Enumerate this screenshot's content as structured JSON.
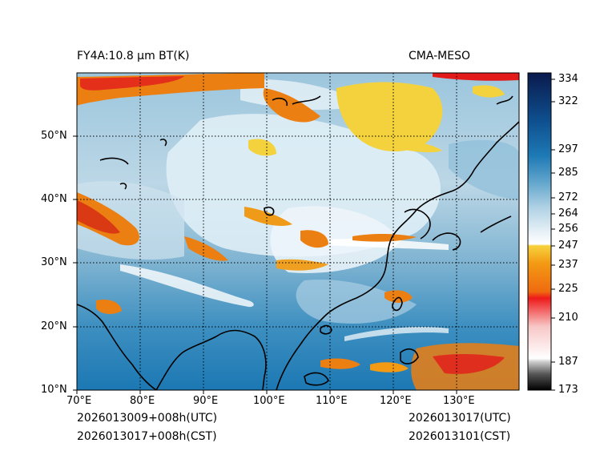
{
  "titles": {
    "left": "FY4A:10.8 µm BT(K)",
    "right": "CMA-MESO"
  },
  "footer": {
    "init_utc": "2026013009+008h(UTC)",
    "init_cst": "2026013017+008h(CST)",
    "valid_utc": "2026013017(UTC)",
    "valid_cst": "2026013101(CST)"
  },
  "map": {
    "lon_ticks": [
      "70°E",
      "80°E",
      "90°E",
      "100°E",
      "110°E",
      "120°E",
      "130°E"
    ],
    "lat_ticks": [
      "10°N",
      "20°N",
      "30°N",
      "40°N",
      "50°N"
    ]
  },
  "colorbar": {
    "unit": "BT(K)",
    "ticks": [
      "173",
      "187",
      "210",
      "225",
      "237",
      "247",
      "256",
      "264",
      "272",
      "285",
      "297",
      "322",
      "334"
    ]
  },
  "colors": {
    "sea_blue": "#1a78b4",
    "land_light": "#d6e7f0",
    "cloud_white": "#f3f8fb",
    "cold_yellow": "#f3d23e",
    "cold_orange": "#ec7f12",
    "cold_red": "#e21a1a",
    "coast": "#000000"
  }
}
